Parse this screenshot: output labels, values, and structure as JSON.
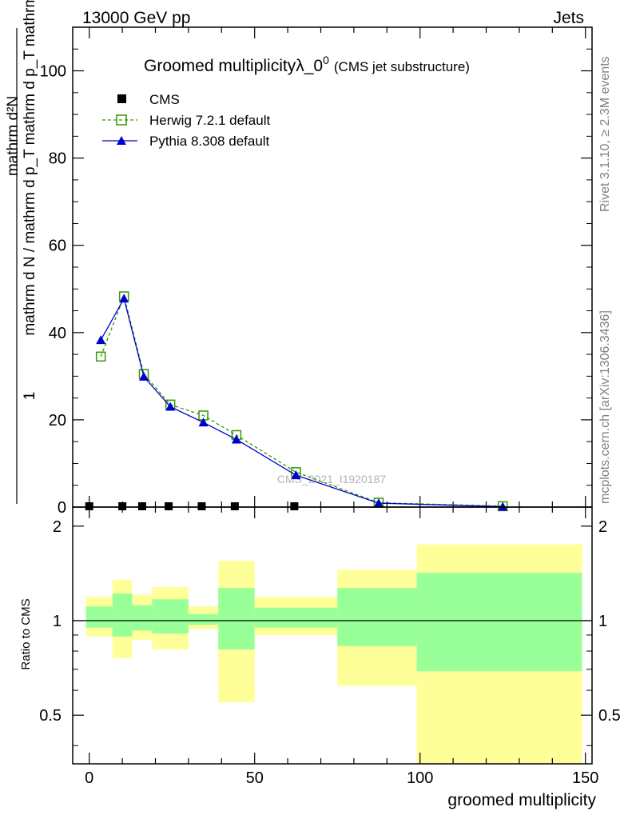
{
  "header": {
    "left": "13000 GeV pp",
    "right": "Jets"
  },
  "side_labels": {
    "rivet": "Rivet 3.1.10, ≥ 2.3M events",
    "mcplots": "mcplots.cern.ch [arXiv:1306.3436]"
  },
  "watermark": "CMS_2021_I1920187",
  "chart_data": [
    {
      "type": "line",
      "title": "Groomed multiplicityλ_0",
      "title_sup": "0",
      "subtitle": "(CMS jet substructure)",
      "ylabel_numerator": "mathrm d²N",
      "ylabel_line1": "mathrm d N / mathrm d p_T mathrm d p_T mathrm d lambda",
      "ylabel_lead": "1",
      "xlim": [
        -5,
        152
      ],
      "ylim": [
        0,
        110
      ],
      "yticks": [
        0,
        20,
        40,
        60,
        80,
        100
      ],
      "grid": false,
      "legend_position": "top-left",
      "series": [
        {
          "name": "CMS",
          "style": "data",
          "color": "#000000",
          "x": [
            0,
            10,
            16,
            24,
            34,
            44,
            62
          ],
          "y": [
            0,
            0,
            0,
            0,
            0,
            0,
            0
          ]
        },
        {
          "name": "Herwig 7.2.1 default",
          "style": "dashed-open-square",
          "color": "#339900",
          "x": [
            3.5,
            10.5,
            16.5,
            24.5,
            34.5,
            44.5,
            62.5,
            87.5,
            125
          ],
          "y": [
            34.5,
            48.3,
            30.5,
            23.5,
            21.0,
            16.5,
            8.0,
            1.0,
            0.2
          ]
        },
        {
          "name": "Pythia 8.308 default",
          "style": "solid-filled-triangle",
          "color": "#0000cc",
          "x": [
            3.5,
            10.5,
            16.5,
            24.5,
            34.5,
            44.5,
            62.5,
            87.5,
            125
          ],
          "y": [
            38.3,
            47.8,
            29.9,
            23.0,
            19.4,
            15.5,
            7.3,
            0.9,
            0.1
          ]
        }
      ]
    },
    {
      "type": "area",
      "ylabel": "Ratio to CMS",
      "xlabel": "groomed multiplicity",
      "xlim": [
        -5,
        152
      ],
      "ylim": [
        0.35,
        2.3
      ],
      "yticks": [
        0.5,
        1,
        2
      ],
      "xticks": [
        0,
        50,
        100,
        150
      ],
      "reference": 1,
      "bins": [
        {
          "x0": -1,
          "x1": 7,
          "outer": [
            0.89,
            1.19
          ],
          "inner": [
            0.95,
            1.11
          ]
        },
        {
          "x0": 7,
          "x1": 13,
          "outer": [
            0.76,
            1.35
          ],
          "inner": [
            0.89,
            1.22
          ]
        },
        {
          "x0": 13,
          "x1": 19,
          "outer": [
            0.87,
            1.21
          ],
          "inner": [
            0.93,
            1.12
          ]
        },
        {
          "x0": 19,
          "x1": 30,
          "outer": [
            0.81,
            1.28
          ],
          "inner": [
            0.91,
            1.17
          ]
        },
        {
          "x0": 30,
          "x1": 39,
          "outer": [
            0.94,
            1.11
          ],
          "inner": [
            0.97,
            1.05
          ]
        },
        {
          "x0": 39,
          "x1": 50,
          "outer": [
            0.55,
            1.55
          ],
          "inner": [
            0.81,
            1.27
          ]
        },
        {
          "x0": 50,
          "x1": 75,
          "outer": [
            0.9,
            1.19
          ],
          "inner": [
            0.95,
            1.1
          ]
        },
        {
          "x0": 75,
          "x1": 99,
          "outer": [
            0.62,
            1.45
          ],
          "inner": [
            0.83,
            1.27
          ]
        },
        {
          "x0": 99,
          "x1": 149,
          "outer": [
            0.35,
            1.75
          ],
          "inner": [
            0.69,
            1.42
          ]
        }
      ]
    }
  ]
}
